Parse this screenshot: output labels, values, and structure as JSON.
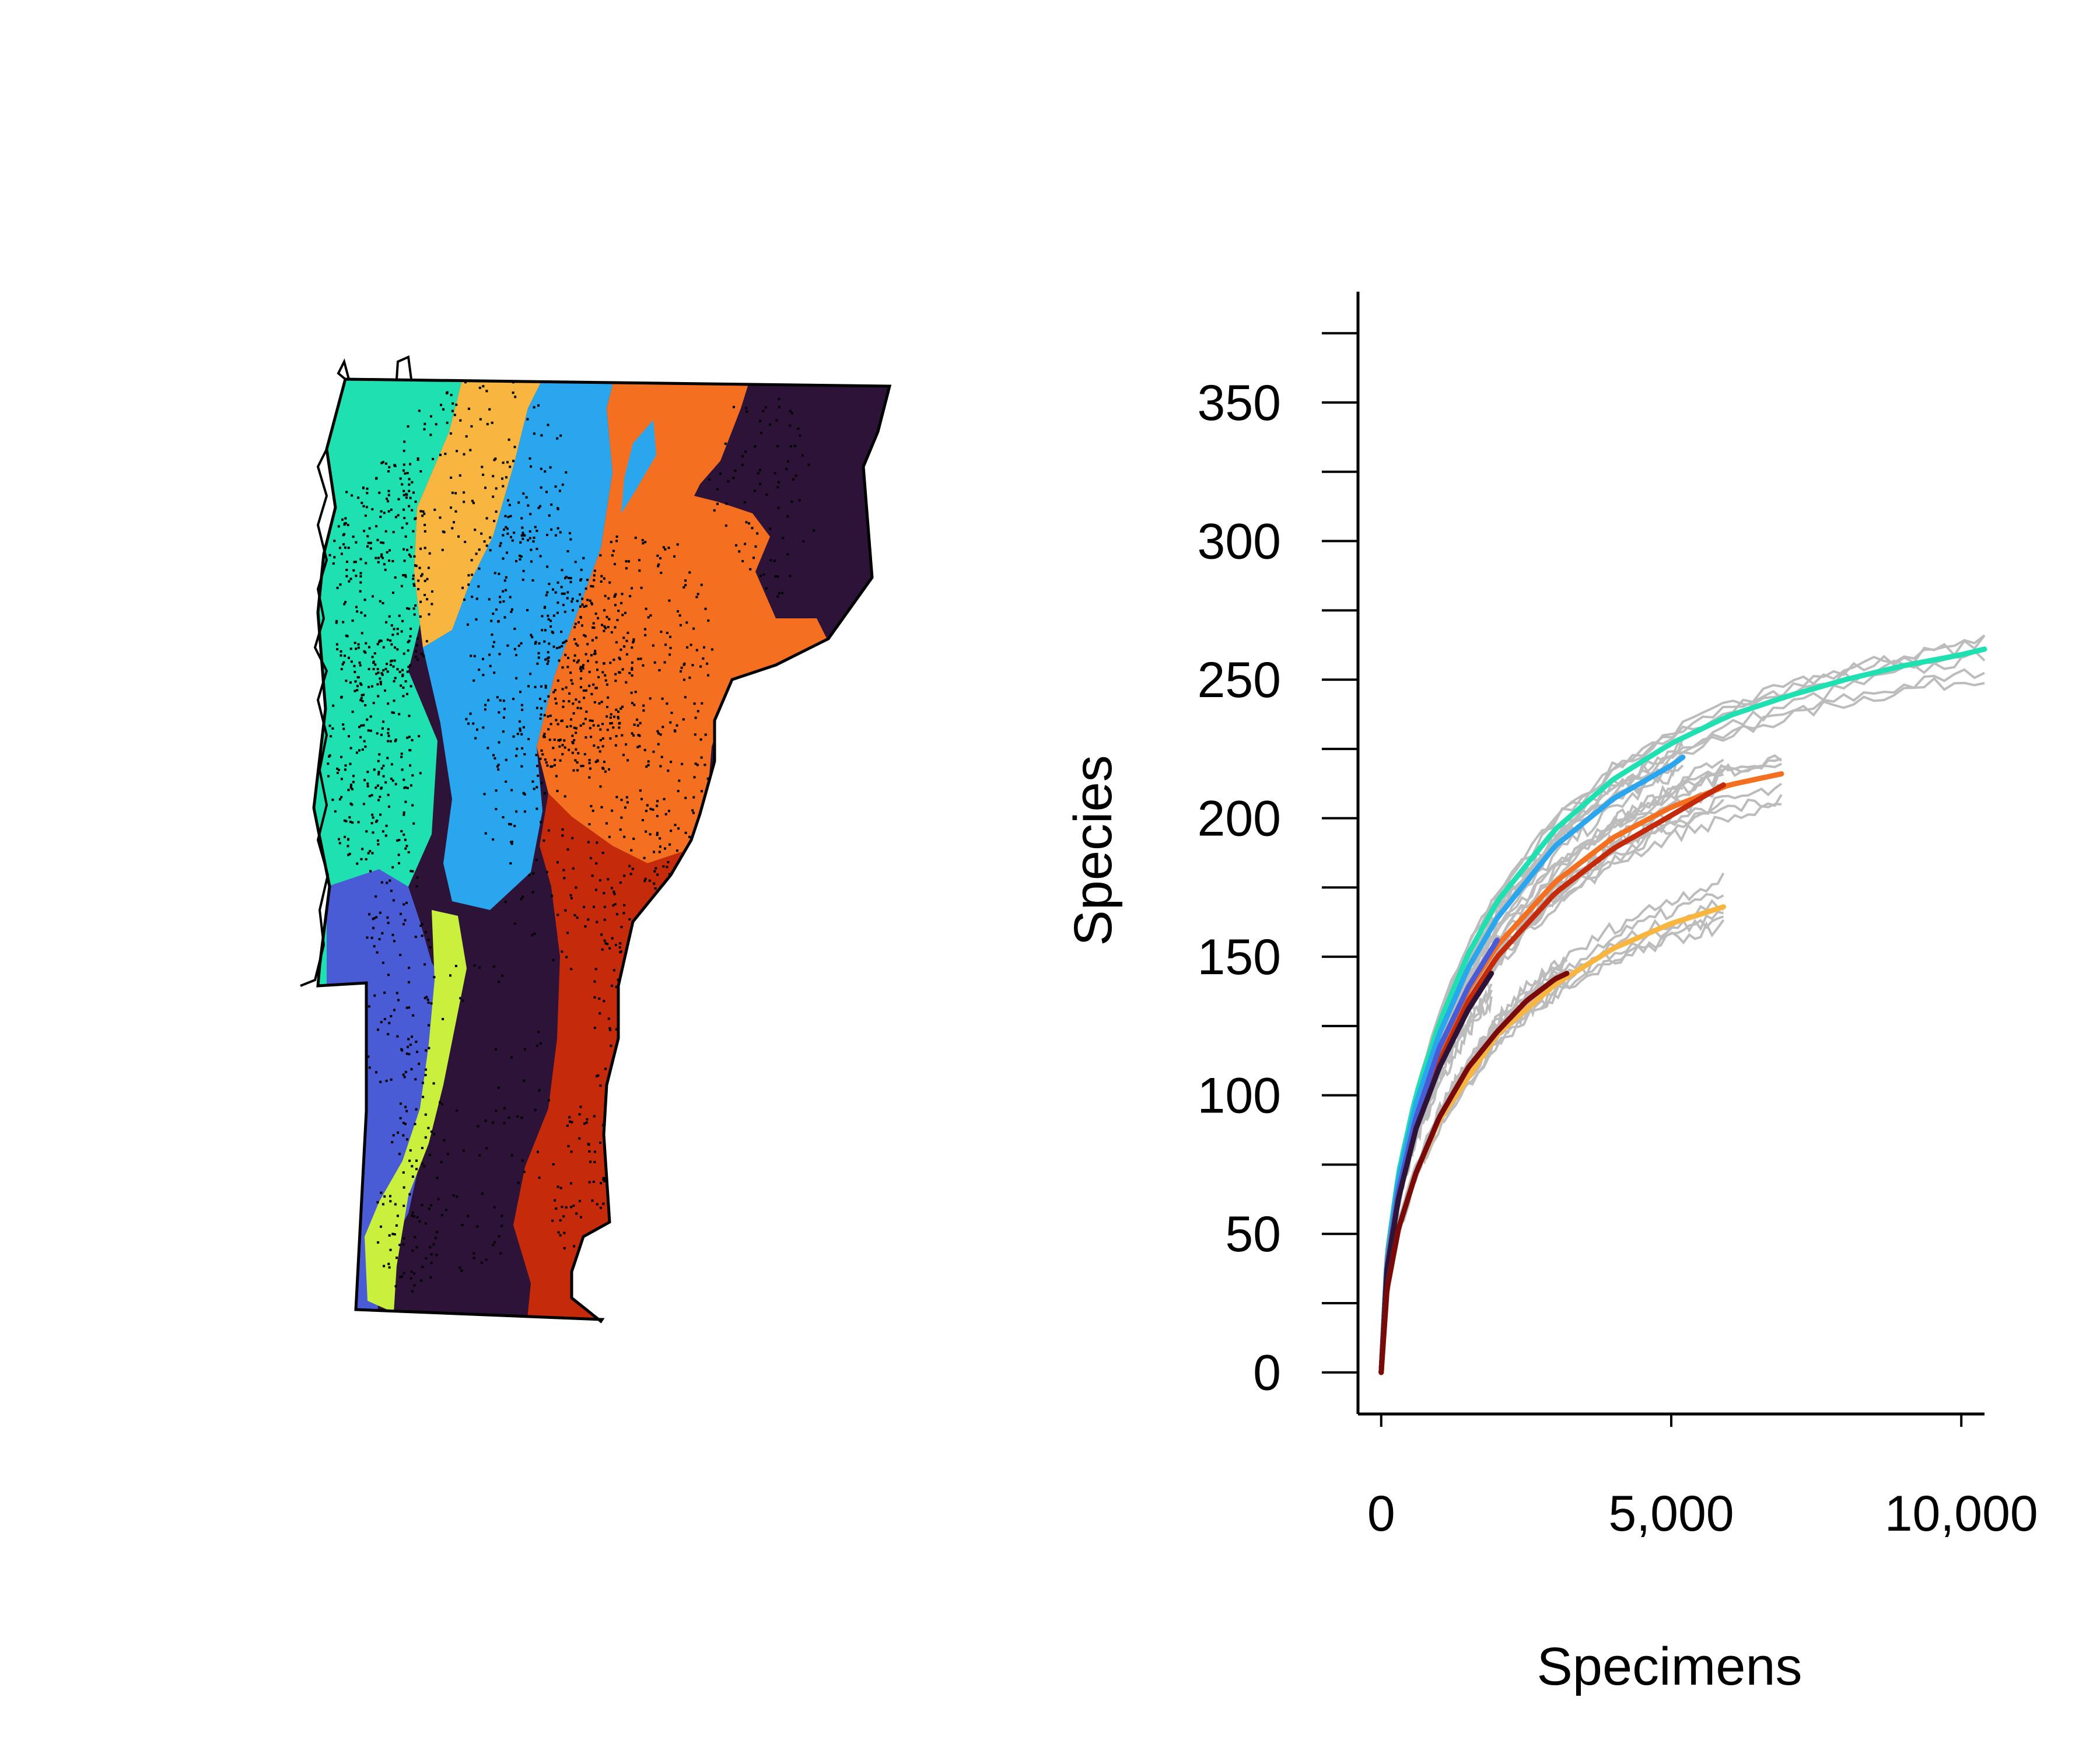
{
  "colors": {
    "champlain_valley": "#1fe0b0",
    "yellow_region": "#f8b640",
    "blue_region": "#2aa6ee",
    "orange_region": "#f47020",
    "dark_region": "#2e1338",
    "red_region": "#c52a0a",
    "indigo_region": "#4a5bd6",
    "lime_region": "#c9f03c",
    "maroon_region": "#7a0a0a",
    "envelope": "#bcbcbc"
  },
  "chart_data": {
    "type": "line",
    "title": "",
    "xlabel": "Specimens",
    "ylabel": "Species",
    "xlim": [
      -400,
      10400
    ],
    "ylim": [
      -15,
      390
    ],
    "x_ticks": [
      {
        "value": 0,
        "label": "0"
      },
      {
        "value": 5000,
        "label": "5,000"
      },
      {
        "value": 10000,
        "label": "10,000"
      }
    ],
    "y_ticks": [
      {
        "value": 0,
        "label": "0"
      },
      {
        "value": 50,
        "label": "50"
      },
      {
        "value": 100,
        "label": "100"
      },
      {
        "value": 150,
        "label": "150"
      },
      {
        "value": 200,
        "label": "200"
      },
      {
        "value": 250,
        "label": "250"
      },
      {
        "value": 300,
        "label": "300"
      },
      {
        "value": 350,
        "label": "350"
      }
    ],
    "y_minor_ticks": [
      25,
      75,
      125,
      175,
      225,
      275,
      325,
      375
    ],
    "grid": false,
    "legend": "none",
    "series": [
      {
        "color": "#1fe0b0",
        "x": [
          0,
          100,
          300,
          600,
          1000,
          1500,
          2000,
          3000,
          4000,
          5000,
          6000,
          7000,
          8000,
          9000,
          10000,
          10400
        ],
        "y": [
          0,
          42,
          72,
          100,
          126,
          151,
          170,
          196,
          214,
          227,
          237,
          244,
          250,
          255,
          259,
          261
        ]
      },
      {
        "color": "#2aa6ee",
        "x": [
          0,
          100,
          300,
          600,
          1000,
          1500,
          2000,
          3000,
          4000,
          5000,
          5200
        ],
        "y": [
          0,
          41,
          70,
          97,
          122,
          146,
          164,
          190,
          207,
          219,
          222
        ]
      },
      {
        "color": "#f47020",
        "x": [
          0,
          100,
          300,
          600,
          1000,
          1500,
          2000,
          3000,
          4000,
          5000,
          6000,
          6900
        ],
        "y": [
          0,
          39,
          66,
          92,
          116,
          138,
          154,
          177,
          193,
          204,
          212,
          216
        ]
      },
      {
        "color": "#c52a0a",
        "x": [
          0,
          100,
          300,
          600,
          1000,
          1500,
          2000,
          3000,
          4000,
          5000,
          5900
        ],
        "y": [
          0,
          38,
          64,
          89,
          112,
          134,
          150,
          173,
          189,
          201,
          212
        ]
      },
      {
        "color": "#4a5bd6",
        "x": [
          0,
          100,
          300,
          600,
          1000,
          1500,
          2000
        ],
        "y": [
          0,
          38,
          66,
          92,
          117,
          139,
          156
        ]
      },
      {
        "color": "#2e1338",
        "x": [
          0,
          100,
          300,
          600,
          1000,
          1500,
          1900
        ],
        "y": [
          0,
          37,
          63,
          88,
          110,
          131,
          144
        ]
      },
      {
        "color": "#f8b640",
        "x": [
          0,
          100,
          300,
          600,
          1000,
          2000,
          3000,
          4000,
          5000,
          5900
        ],
        "y": [
          0,
          30,
          52,
          72,
          91,
          122,
          140,
          153,
          162,
          168
        ]
      },
      {
        "color": "#7a0a0a",
        "x": [
          0,
          100,
          300,
          600,
          1000,
          1500,
          2000,
          2500,
          3000,
          3200
        ],
        "y": [
          0,
          30,
          52,
          72,
          92,
          110,
          123,
          134,
          142,
          144
        ]
      }
    ]
  }
}
